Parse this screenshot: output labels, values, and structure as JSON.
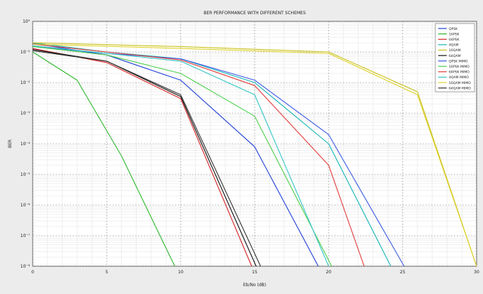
{
  "chart_data": {
    "type": "line",
    "title": "BER PERFORMANCE WITH DIFFERENT SCHEMES",
    "xlabel": "Eb/No (dB)",
    "ylabel": "BER",
    "x_ticks": [
      "0",
      "5",
      "10",
      "15",
      "20",
      "25",
      "30"
    ],
    "y_tick_labels": [
      "10⁰",
      "10⁻¹",
      "10⁻²",
      "10⁻³",
      "10⁻⁴",
      "10⁻⁵",
      "10⁻⁶",
      "10⁻⁷",
      "10⁻⁸"
    ],
    "xlim": [
      0,
      30
    ],
    "ylim_log10": [
      -8,
      0
    ],
    "grid": true,
    "legend_position": "top-right",
    "series": [
      {
        "name": "QPSK",
        "color": "#1f3fd8",
        "x": [
          0,
          5,
          10,
          15,
          19.3
        ],
        "y": [
          0.19,
          0.08,
          0.012,
          8e-05,
          1e-08
        ]
      },
      {
        "name": "16PSK",
        "color": "#2db82d",
        "x": [
          0,
          3,
          6,
          9.6
        ],
        "y": [
          0.1,
          0.012,
          4e-05,
          1e-08
        ]
      },
      {
        "name": "64PSK",
        "color": "#d62222",
        "x": [
          0,
          5,
          10,
          14.8
        ],
        "y": [
          0.13,
          0.045,
          0.003,
          1e-08
        ]
      },
      {
        "name": "4QAM",
        "color": "#16b5b5",
        "x": [
          0,
          5,
          10,
          15,
          20,
          24.2
        ],
        "y": [
          0.2,
          0.1,
          0.06,
          0.01,
          0.0001,
          1e-08
        ]
      },
      {
        "name": "16QAM",
        "color": "#c9c01a",
        "x": [
          0,
          10,
          20,
          26,
          30
        ],
        "y": [
          0.2,
          0.15,
          0.1,
          0.005,
          1e-08
        ]
      },
      {
        "name": "64QAM",
        "color": "#111111",
        "x": [
          0,
          5,
          10,
          15.1
        ],
        "y": [
          0.12,
          0.05,
          0.0035,
          1e-08
        ]
      },
      {
        "name": "QPSK MIMO",
        "color": "#3a5ae6",
        "x": [
          0,
          5,
          10,
          15,
          20,
          25.1
        ],
        "y": [
          0.15,
          0.09,
          0.06,
          0.012,
          0.0002,
          1e-08
        ]
      },
      {
        "name": "16PSK MIMO",
        "color": "#4ccf4c",
        "x": [
          0,
          5,
          10,
          15,
          20.2
        ],
        "y": [
          0.15,
          0.08,
          0.02,
          0.0008,
          1e-08
        ]
      },
      {
        "name": "64PSK MIMO",
        "color": "#e23c3c",
        "x": [
          0,
          5,
          10,
          15,
          20,
          22.4
        ],
        "y": [
          0.18,
          0.1,
          0.055,
          0.008,
          2e-05,
          1e-08
        ]
      },
      {
        "name": "4QAM MIMO",
        "color": "#36c6c6",
        "x": [
          0,
          5,
          10,
          15,
          20
        ],
        "y": [
          0.16,
          0.09,
          0.05,
          0.004,
          1e-08
        ]
      },
      {
        "name": "16QAM MIMO",
        "color": "#dfd22a",
        "x": [
          0,
          10,
          20,
          26,
          30
        ],
        "y": [
          0.18,
          0.13,
          0.09,
          0.004,
          1e-08
        ]
      },
      {
        "name": "64QAM MIMO",
        "color": "#333333",
        "x": [
          0,
          5,
          10,
          15.4
        ],
        "y": [
          0.11,
          0.05,
          0.004,
          1e-08
        ]
      }
    ]
  }
}
